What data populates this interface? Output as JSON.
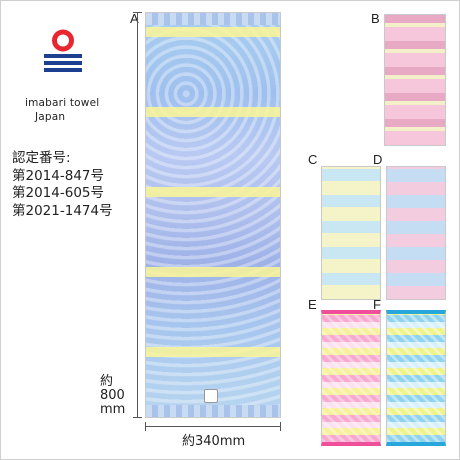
{
  "brand": {
    "name": "imabari towel",
    "region": "Japan",
    "colors": {
      "red": "#e8262f",
      "navy": "#1d3f8f"
    }
  },
  "certification": {
    "heading": "認定番号:",
    "numbers": [
      "第2014-847号",
      "第2014-605号",
      "第2021-1474号"
    ]
  },
  "variants": [
    {
      "label": "A"
    },
    {
      "label": "B"
    },
    {
      "label": "C"
    },
    {
      "label": "D"
    },
    {
      "label": "E"
    },
    {
      "label": "F"
    }
  ],
  "dimensions": {
    "height_prefix": "約",
    "height_value": "800",
    "height_unit": "mm",
    "width_text": "約340mm"
  }
}
